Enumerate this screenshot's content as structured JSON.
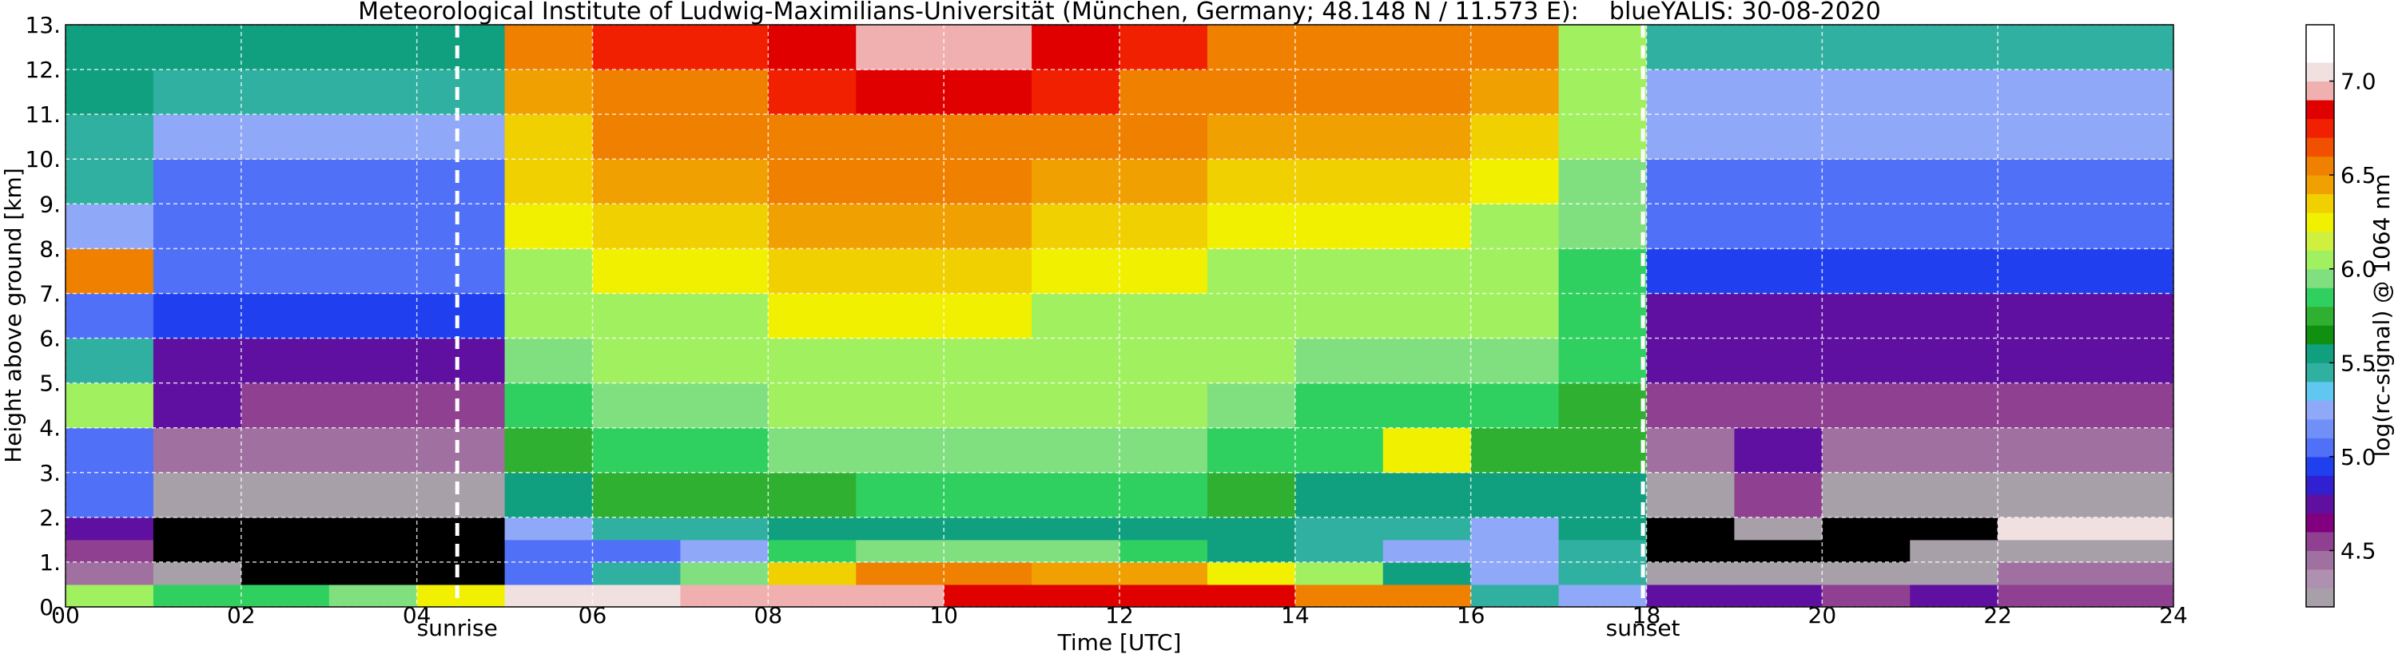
{
  "chart_data": {
    "type": "heatmap",
    "title": "Meteorological Institute of Ludwig-Maximilians-Universität (München, Germany; 48.148 N / 11.573 E):    blueYALIS: 30-08-2020",
    "xlabel": "Time [UTC]",
    "ylabel": "Height above ground [km]",
    "colorbar_label": "log(rc-signal) @ 1064 nm",
    "xlim": [
      0,
      24
    ],
    "ylim": [
      0,
      13
    ],
    "xticks": [
      {
        "value": 0,
        "label": "00"
      },
      {
        "value": 2,
        "label": "02"
      },
      {
        "value": 4,
        "label": "04"
      },
      {
        "value": 6,
        "label": "06"
      },
      {
        "value": 8,
        "label": "08"
      },
      {
        "value": 10,
        "label": "10"
      },
      {
        "value": 12,
        "label": "12"
      },
      {
        "value": 14,
        "label": "14"
      },
      {
        "value": 16,
        "label": "16"
      },
      {
        "value": 18,
        "label": "18"
      },
      {
        "value": 20,
        "label": "20"
      },
      {
        "value": 22,
        "label": "22"
      },
      {
        "value": 24,
        "label": "24"
      }
    ],
    "yticks": [
      {
        "value": 0,
        "label": "0."
      },
      {
        "value": 1,
        "label": "1."
      },
      {
        "value": 2,
        "label": "2."
      },
      {
        "value": 3,
        "label": "3."
      },
      {
        "value": 4,
        "label": "4."
      },
      {
        "value": 5,
        "label": "5."
      },
      {
        "value": 6,
        "label": "6."
      },
      {
        "value": 7,
        "label": "7."
      },
      {
        "value": 8,
        "label": "8."
      },
      {
        "value": 9,
        "label": "9."
      },
      {
        "value": 10,
        "label": "10."
      },
      {
        "value": 11,
        "label": "11."
      },
      {
        "value": 12,
        "label": "12."
      },
      {
        "value": 13,
        "label": "13."
      }
    ],
    "grid": true,
    "grid_color": "#ffffff",
    "x_edges": [
      0,
      1,
      2,
      3,
      4,
      5,
      6,
      7,
      8,
      9,
      10,
      11,
      12,
      13,
      14,
      15,
      16,
      17,
      18,
      19,
      20,
      21,
      22,
      23,
      24
    ],
    "y_edges": [
      0,
      0.5,
      1,
      1.5,
      2,
      3,
      4,
      5,
      6,
      7,
      8,
      9,
      10,
      11,
      12,
      13
    ],
    "z": [
      [
        6.0,
        5.8,
        5.8,
        5.9,
        6.2,
        7.0,
        7.0,
        6.9,
        6.9,
        6.9,
        6.8,
        6.8,
        6.8,
        6.8,
        6.6,
        6.5,
        5.4,
        5.2,
        4.8,
        4.8,
        4.6,
        4.8,
        4.6,
        4.6
      ],
      [
        4.4,
        4.2,
        4.0,
        4.0,
        4.0,
        5.0,
        5.4,
        5.9,
        6.3,
        6.6,
        6.5,
        6.4,
        6.4,
        6.2,
        6.0,
        5.6,
        5.2,
        5.4,
        4.3,
        4.2,
        4.2,
        4.3,
        4.4,
        4.4
      ],
      [
        4.6,
        4.0,
        4.0,
        4.0,
        4.0,
        5.0,
        5.1,
        5.2,
        5.8,
        5.9,
        5.9,
        5.9,
        5.8,
        5.6,
        5.4,
        5.3,
        5.2,
        5.4,
        4.0,
        4.0,
        4.0,
        4.2,
        4.2,
        4.2
      ],
      [
        4.8,
        4.0,
        4.0,
        4.0,
        4.0,
        5.3,
        5.4,
        5.4,
        5.5,
        5.5,
        5.6,
        5.6,
        5.5,
        5.5,
        5.4,
        5.4,
        5.3,
        5.5,
        4.0,
        4.3,
        4.0,
        4.0,
        7.0,
        7.0
      ],
      [
        5.0,
        4.2,
        4.2,
        4.2,
        4.2,
        5.6,
        5.7,
        5.7,
        5.7,
        5.8,
        5.8,
        5.8,
        5.8,
        5.7,
        5.6,
        5.6,
        5.5,
        5.6,
        4.3,
        4.6,
        4.3,
        4.3,
        4.3,
        4.3
      ],
      [
        5.0,
        4.5,
        4.4,
        4.4,
        4.4,
        5.7,
        5.8,
        5.8,
        5.9,
        5.9,
        5.9,
        5.9,
        5.9,
        5.8,
        5.8,
        6.2,
        5.7,
        5.7,
        4.5,
        4.8,
        4.5,
        4.5,
        4.5,
        4.5
      ],
      [
        6.0,
        4.7,
        4.6,
        4.6,
        4.6,
        5.8,
        5.9,
        5.9,
        6.0,
        6.0,
        6.0,
        6.0,
        6.0,
        5.9,
        5.8,
        5.8,
        5.8,
        5.7,
        4.6,
        4.6,
        4.6,
        4.6,
        4.6,
        4.6
      ],
      [
        5.4,
        4.8,
        4.8,
        4.8,
        4.8,
        5.9,
        6.0,
        6.0,
        6.1,
        6.1,
        6.1,
        6.1,
        6.0,
        6.0,
        5.9,
        5.9,
        5.9,
        5.8,
        4.7,
        4.7,
        4.7,
        4.7,
        4.7,
        4.7
      ],
      [
        5.0,
        4.9,
        4.9,
        4.9,
        4.9,
        6.0,
        6.1,
        6.1,
        6.2,
        6.2,
        6.2,
        6.1,
        6.1,
        6.0,
        6.0,
        6.0,
        6.0,
        5.8,
        4.8,
        4.8,
        4.8,
        4.8,
        4.8,
        4.8
      ],
      [
        6.5,
        5.0,
        5.0,
        5.0,
        5.0,
        6.1,
        6.2,
        6.2,
        6.3,
        6.3,
        6.3,
        6.2,
        6.2,
        6.1,
        6.1,
        6.1,
        6.0,
        5.8,
        4.9,
        4.9,
        4.9,
        4.9,
        4.9,
        4.9
      ],
      [
        5.3,
        5.0,
        5.0,
        5.0,
        5.0,
        6.2,
        6.3,
        6.3,
        6.4,
        6.4,
        6.4,
        6.3,
        6.3,
        6.2,
        6.2,
        6.2,
        6.1,
        5.9,
        5.0,
        5.0,
        5.0,
        5.0,
        5.0,
        5.0
      ],
      [
        5.4,
        5.1,
        5.1,
        5.1,
        5.1,
        6.3,
        6.4,
        6.4,
        6.5,
        6.5,
        6.5,
        6.4,
        6.4,
        6.3,
        6.3,
        6.3,
        6.2,
        5.9,
        5.1,
        5.1,
        5.1,
        5.1,
        5.1,
        5.1
      ],
      [
        5.4,
        5.2,
        5.2,
        5.2,
        5.2,
        6.3,
        6.5,
        6.5,
        6.6,
        6.6,
        6.6,
        6.5,
        6.5,
        6.4,
        6.4,
        6.4,
        6.3,
        6.0,
        5.2,
        5.2,
        5.2,
        5.2,
        5.2,
        5.2
      ],
      [
        5.5,
        5.4,
        5.4,
        5.4,
        5.4,
        6.4,
        6.6,
        6.6,
        6.7,
        6.8,
        6.8,
        6.7,
        6.6,
        6.5,
        6.5,
        6.5,
        6.4,
        6.0,
        5.3,
        5.3,
        5.3,
        5.3,
        5.3,
        5.3
      ],
      [
        5.6,
        5.5,
        5.5,
        5.5,
        5.5,
        6.5,
        6.7,
        6.7,
        6.8,
        6.9,
        6.9,
        6.8,
        6.7,
        6.6,
        6.6,
        6.6,
        6.5,
        6.1,
        5.4,
        5.4,
        5.4,
        5.4,
        5.4,
        5.4
      ]
    ],
    "colormap": {
      "clim": [
        4.2,
        7.3
      ],
      "under_color": "#000000",
      "colors": [
        "#a8a0a8",
        "#b090b0",
        "#a070a0",
        "#904090",
        "#800080",
        "#6010a0",
        "#3020d0",
        "#2040f0",
        "#5070f8",
        "#7090f8",
        "#90a8f8",
        "#60c8f0",
        "#30b0a0",
        "#10a080",
        "#109010",
        "#30b030",
        "#30d060",
        "#80e080",
        "#a0f060",
        "#d0f040",
        "#f0f000",
        "#f0d000",
        "#f0a000",
        "#f08000",
        "#f05000",
        "#f02000",
        "#e00000",
        "#f0b0b0",
        "#f0e0e0",
        "#ffffff",
        "#ffffff"
      ]
    },
    "cticks": [
      4.5,
      {
        "value": 5,
        "label": "5.0"
      },
      5.5,
      {
        "value": 6,
        "label": "6.0"
      },
      6.5,
      {
        "value": 7,
        "label": "7.0"
      }
    ],
    "annotations": [
      {
        "x": 4.46,
        "label": "sunrise"
      },
      {
        "x": 17.96,
        "label": "sunset"
      }
    ]
  }
}
